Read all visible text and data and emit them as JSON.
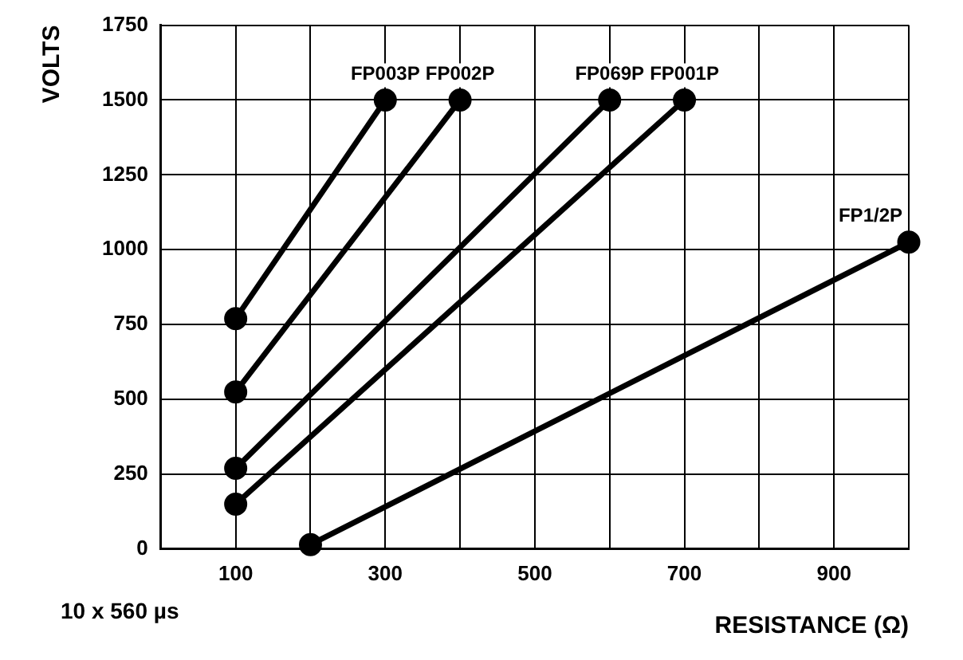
{
  "chart_data": {
    "type": "line",
    "xlabel": "RESISTANCE (Ω)",
    "ylabel": "VOLTS",
    "annotations": [
      "10 x 560 µs"
    ],
    "xlim": [
      0,
      1000
    ],
    "xticks": [
      {
        "value": 0,
        "label": null
      },
      100,
      {
        "value": 200,
        "label": null
      },
      300,
      {
        "value": 400,
        "label": null
      },
      500,
      {
        "value": 600,
        "label": null
      },
      700,
      {
        "value": 800,
        "label": null
      },
      900,
      {
        "value": 1000,
        "label": null
      }
    ],
    "ylim": [
      0,
      1750
    ],
    "yticks": [
      0,
      250,
      500,
      750,
      1000,
      1250,
      1500,
      1750
    ],
    "grid": true,
    "legend": false,
    "marker": "circle",
    "line_style": "solid",
    "series": [
      {
        "name": "FP003P",
        "color": "#000000",
        "x": [
          100,
          300
        ],
        "values": [
          770,
          1500
        ]
      },
      {
        "name": "FP002P",
        "color": "#000000",
        "x": [
          100,
          400
        ],
        "values": [
          525,
          1500
        ]
      },
      {
        "name": "FP069P",
        "color": "#000000",
        "x": [
          100,
          600
        ],
        "values": [
          270,
          1500
        ]
      },
      {
        "name": "FP001P",
        "color": "#000000",
        "x": [
          100,
          700
        ],
        "values": [
          150,
          1500
        ]
      },
      {
        "name": "FP1/2P",
        "color": "#000000",
        "x": [
          200,
          1000
        ],
        "values": [
          15,
          1025
        ]
      }
    ]
  }
}
